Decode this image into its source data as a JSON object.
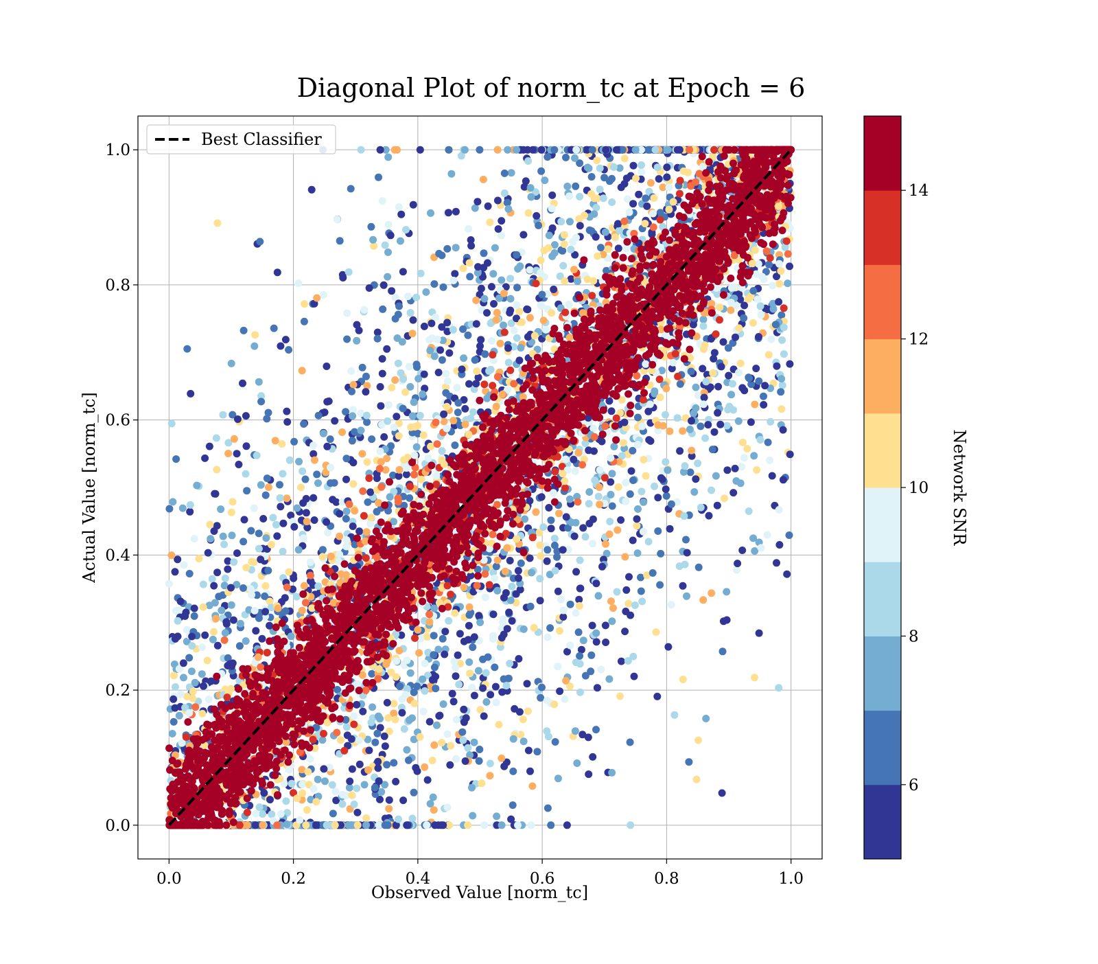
{
  "chart_data": {
    "type": "scatter",
    "title": "Diagonal Plot of norm_tc at Epoch = 6",
    "xlabel": "Observed Value [norm_tc]",
    "ylabel": "Actual Value [norm_tc]",
    "xlim": [
      -0.05,
      1.05
    ],
    "ylim": [
      -0.05,
      1.05
    ],
    "xticks": [
      "0.0",
      "0.2",
      "0.4",
      "0.6",
      "0.8",
      "1.0"
    ],
    "yticks": [
      "0.0",
      "0.2",
      "0.4",
      "0.6",
      "0.8",
      "1.0"
    ],
    "grid": true,
    "legend": {
      "placement": "top-left",
      "entries": [
        {
          "label": "Best Classifier",
          "style": "dashed",
          "color": "#000000"
        }
      ]
    },
    "reference_line": {
      "x": [
        0,
        1
      ],
      "y": [
        0,
        1
      ]
    },
    "colorbar": {
      "label": "Network SNR",
      "range": [
        5,
        15
      ],
      "ticks": [
        "6",
        "8",
        "10",
        "12",
        "14"
      ],
      "colors": [
        "#313695",
        "#4575b4",
        "#74add1",
        "#abd9e9",
        "#e0f3f8",
        "#fee090",
        "#fdae61",
        "#f46d43",
        "#d73027",
        "#a50026"
      ]
    }
  }
}
